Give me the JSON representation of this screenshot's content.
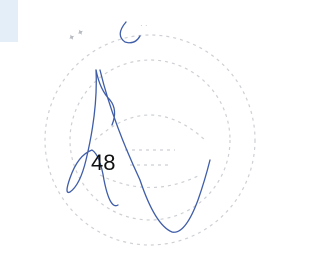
{
  "page_number": "48"
}
